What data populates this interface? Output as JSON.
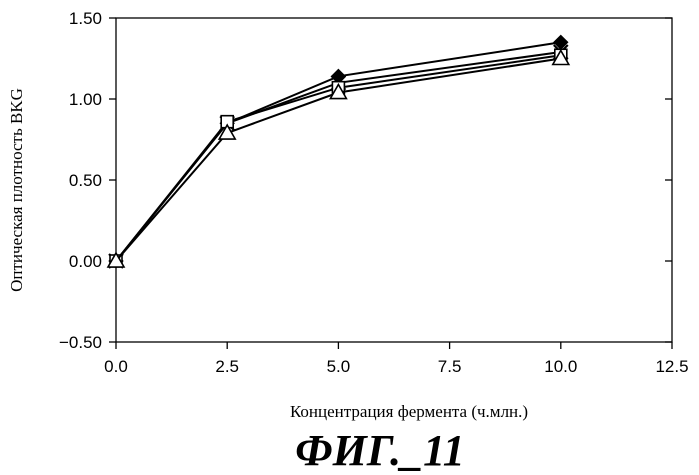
{
  "chart_data": {
    "type": "line",
    "title": "",
    "xlabel": "Концентрация фермента (ч.млн.)",
    "ylabel": "Оптическая плотность BKG",
    "xlim": [
      0,
      12.5
    ],
    "ylim": [
      -0.5,
      1.5
    ],
    "x_ticks": [
      "0.0",
      "2.5",
      "5.0",
      "7.5",
      "10.0",
      "12.5"
    ],
    "y_ticks": [
      "1.50",
      "1.00",
      "0.50",
      "0.00",
      "−0.50"
    ],
    "x_tick_values": [
      0,
      2.5,
      5,
      7.5,
      10,
      12.5
    ],
    "y_tick_values": [
      1.5,
      1.0,
      0.5,
      0.0,
      -0.5
    ],
    "grid": false,
    "legend": "none",
    "x": [
      0,
      2.5,
      5,
      10
    ],
    "series": [
      {
        "marker": "filled-diamond",
        "values": [
          0.0,
          0.85,
          1.14,
          1.35
        ]
      },
      {
        "marker": "x-cross",
        "values": [
          0.0,
          0.85,
          1.1,
          1.29
        ]
      },
      {
        "marker": "open-square",
        "values": [
          0.0,
          0.86,
          1.07,
          1.27
        ]
      },
      {
        "marker": "open-triangle",
        "values": [
          0.0,
          0.79,
          1.04,
          1.25
        ]
      }
    ],
    "caption": "ФИГ._11"
  }
}
